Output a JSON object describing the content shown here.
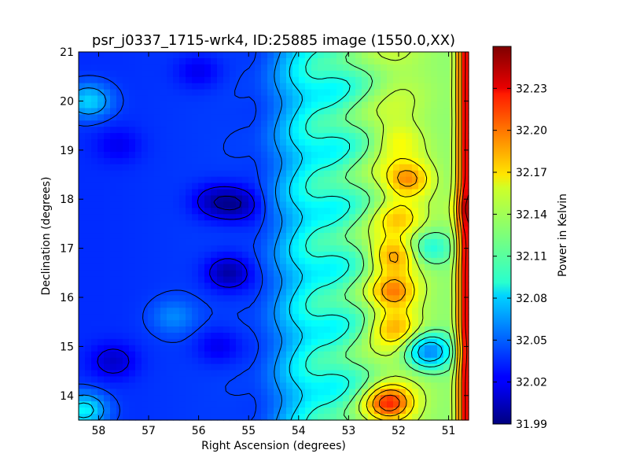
{
  "chart_data": {
    "type": "heatmap",
    "title": "psr_j0337_1715-wrk4, ID:25885 image (1550.0,XX)",
    "xlabel": "Right Ascension (degrees)",
    "ylabel": "Declination (degrees)",
    "xlim": [
      58.4,
      50.6
    ],
    "ylim": [
      13.5,
      21.0
    ],
    "x_ticks": [
      "58",
      "57",
      "56",
      "55",
      "54",
      "53",
      "52",
      "51"
    ],
    "x_tick_values": [
      58,
      57,
      56,
      55,
      54,
      53,
      52,
      51
    ],
    "y_ticks": [
      "14",
      "15",
      "16",
      "17",
      "18",
      "19",
      "20",
      "21"
    ],
    "y_tick_values": [
      14,
      15,
      16,
      17,
      18,
      19,
      20,
      21
    ],
    "colorbar": {
      "label": "Power in Kelvin",
      "range": [
        31.99,
        32.26
      ],
      "ticks": [
        "31.99",
        "32.02",
        "32.05",
        "32.08",
        "32.11",
        "32.14",
        "32.17",
        "32.20",
        "32.23"
      ],
      "tick_values": [
        31.99,
        32.02,
        32.05,
        32.08,
        32.11,
        32.14,
        32.17,
        32.2,
        32.23
      ],
      "colormap": "jet"
    },
    "contours": true,
    "field": {
      "background_trend": [
        {
          "ra": 58.4,
          "value": 32.035
        },
        {
          "ra": 55.0,
          "value": 32.04
        },
        {
          "ra": 53.5,
          "value": 32.1
        },
        {
          "ra": 52.0,
          "value": 32.14
        },
        {
          "ra": 51.0,
          "value": 32.13
        },
        {
          "ra": 50.6,
          "value": 32.23
        }
      ],
      "features": [
        {
          "ra": 57.7,
          "dec": 14.7,
          "value": 32.01
        },
        {
          "ra": 55.4,
          "dec": 16.5,
          "value": 32.0
        },
        {
          "ra": 55.7,
          "dec": 17.95,
          "value": 32.01
        },
        {
          "ra": 55.2,
          "dec": 17.9,
          "value": 32.005
        },
        {
          "ra": 57.6,
          "dec": 19.1,
          "value": 32.02
        },
        {
          "ra": 55.6,
          "dec": 15.0,
          "value": 32.02
        },
        {
          "ra": 56.5,
          "dec": 15.6,
          "value": 32.06
        },
        {
          "ra": 56.0,
          "dec": 20.6,
          "value": 32.02
        },
        {
          "ra": 58.2,
          "dec": 20.0,
          "value": 32.08
        },
        {
          "ra": 58.3,
          "dec": 13.7,
          "value": 32.09
        },
        {
          "ra": 52.2,
          "dec": 13.85,
          "value": 32.21
        },
        {
          "ra": 52.1,
          "dec": 16.85,
          "value": 32.19
        },
        {
          "ra": 52.1,
          "dec": 16.1,
          "value": 32.19
        },
        {
          "ra": 52.1,
          "dec": 15.4,
          "value": 32.18
        },
        {
          "ra": 51.8,
          "dec": 18.4,
          "value": 32.19
        },
        {
          "ra": 52.0,
          "dec": 17.6,
          "value": 32.17
        },
        {
          "ra": 52.0,
          "dec": 19.2,
          "value": 32.16
        },
        {
          "ra": 51.4,
          "dec": 17.0,
          "value": 32.1
        },
        {
          "ra": 51.4,
          "dec": 14.9,
          "value": 32.06
        },
        {
          "ra": 50.6,
          "dec": 17.8,
          "value": 32.25
        }
      ]
    }
  }
}
